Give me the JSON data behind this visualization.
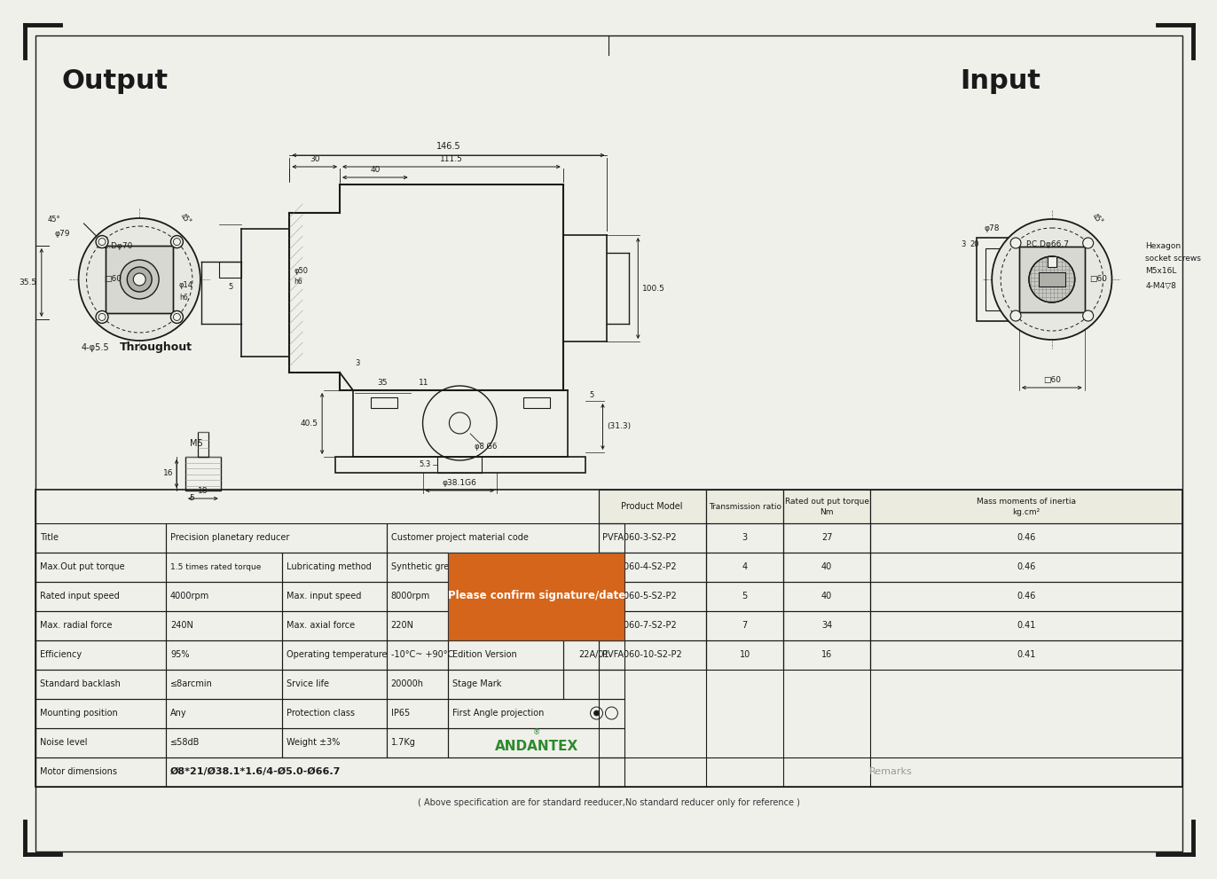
{
  "bg_color": "#f0f0eb",
  "border_color": "#1a1a1a",
  "title": "Output",
  "title2": "Input",
  "table_data": {
    "left_rows": [
      [
        "Title",
        "Precision planetary reducer",
        "Customer project material code",
        ""
      ],
      [
        "Max.Out put torque",
        "1.5 times rated torque",
        "Lubricating method",
        "Synthetic grease"
      ],
      [
        "Rated input speed",
        "4000rpm",
        "Max. input speed",
        "8000rpm"
      ],
      [
        "Max. radial force",
        "240N",
        "Max. axial force",
        "220N"
      ],
      [
        "Efficiency",
        "95%",
        "Operating temperature",
        "-10°C~ +90°C"
      ],
      [
        "Standard backlash",
        "≤8arcmin",
        "Srvice life",
        "20000h"
      ],
      [
        "Mounting position",
        "Any",
        "Protection class",
        "IP65"
      ],
      [
        "Noise level",
        "≤58dB",
        "Weight ±3%",
        "1.7Kg"
      ],
      [
        "Motor dimensions",
        "Ø8*21/Ø38.1*1.6/4-Ø5.0-Ø66.7",
        "",
        ""
      ]
    ],
    "edition_version": "22A/01",
    "right_rows": [
      [
        "PVFA060-3-S2-P2",
        "3",
        "27",
        "0.46"
      ],
      [
        "PVFA060-4-S2-P2",
        "4",
        "40",
        "0.46"
      ],
      [
        "PVFA060-5-S2-P2",
        "5",
        "40",
        "0.46"
      ],
      [
        "PVFA060-7-S2-P2",
        "7",
        "34",
        "0.41"
      ],
      [
        "PVFA060-10-S2-P2",
        "10",
        "16",
        "0.41"
      ]
    ],
    "right_headers": [
      "Product Model",
      "Transmission ratio",
      "Rated out put torque\nNm",
      "Mass moments of inertia\nkg.cm²"
    ],
    "footer": "( Above specification are for standard reeducer,No standard reducer only for reference )",
    "remarks": "Remarks",
    "andantex_color": "#2d8a2d",
    "highlight_color": "#d4651a",
    "highlight_text": "Please confirm signature/date"
  }
}
